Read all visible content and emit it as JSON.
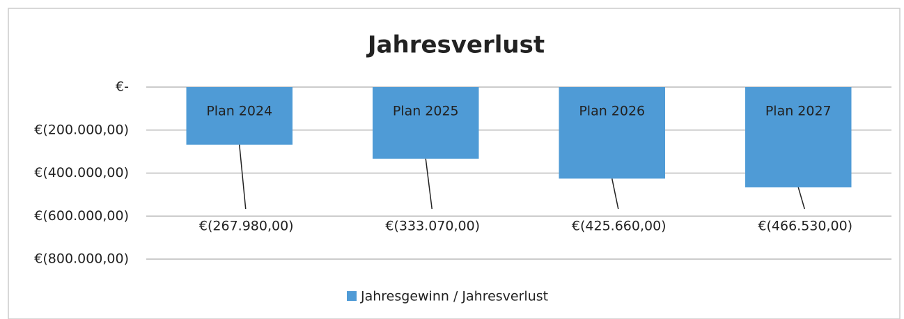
{
  "chart_data": {
    "type": "bar",
    "title": "Jahresverlust",
    "categories": [
      "Plan 2024",
      "Plan 2025",
      "Plan 2026",
      "Plan 2027"
    ],
    "series": [
      {
        "name": "Jahresgewinn / Jahresverlust",
        "color": "#4f9bd6",
        "values": [
          -267980,
          -333070,
          -425660,
          -466530
        ],
        "value_labels": [
          "€(267.980,00)",
          "€(333.070,00)",
          "€(425.660,00)",
          "€(466.530,00)"
        ]
      }
    ],
    "ylim": [
      -800000,
      0
    ],
    "yticks": [
      {
        "value": 0,
        "label": "€-"
      },
      {
        "value": -200000,
        "label": "€(200.000,00)"
      },
      {
        "value": -400000,
        "label": "€(400.000,00)"
      },
      {
        "value": -600000,
        "label": "€(600.000,00)"
      },
      {
        "value": -800000,
        "label": "€(800.000,00)"
      }
    ],
    "grid": true,
    "legend": "bottom"
  }
}
